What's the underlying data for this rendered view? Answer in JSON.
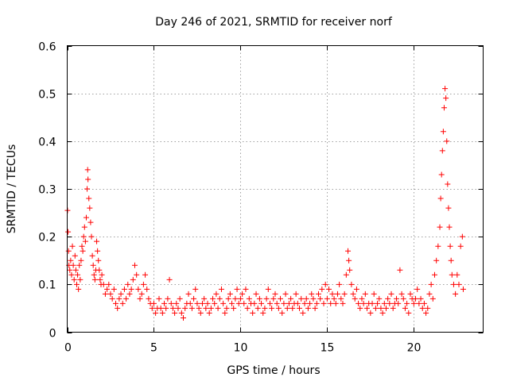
{
  "chart_data": {
    "type": "scatter",
    "title": "Day 246 of 2021, SRMTID for receiver norf",
    "xlabel": "GPS time / hours",
    "ylabel": "SRMTID / TECUs",
    "xlim": [
      0,
      24
    ],
    "ylim": [
      0,
      0.6
    ],
    "xticks": [
      0,
      5,
      10,
      15,
      20
    ],
    "xtick_labels": [
      "0",
      "5",
      "10",
      "15",
      "20"
    ],
    "yticks": [
      0,
      0.1,
      0.2,
      0.3,
      0.4,
      0.5,
      0.6
    ],
    "ytick_labels": [
      "0",
      "0.1",
      "0.2",
      "0.3",
      "0.4",
      "0.5",
      "0.6"
    ],
    "grid": true,
    "marker": "plus",
    "color": "#ff0000",
    "series": [
      {
        "name": "norf",
        "points": [
          [
            0.02,
            0.255
          ],
          [
            0.05,
            0.21
          ],
          [
            0.08,
            0.17
          ],
          [
            0.1,
            0.14
          ],
          [
            0.15,
            0.13
          ],
          [
            0.2,
            0.15
          ],
          [
            0.25,
            0.12
          ],
          [
            0.3,
            0.18
          ],
          [
            0.35,
            0.14
          ],
          [
            0.4,
            0.11
          ],
          [
            0.45,
            0.16
          ],
          [
            0.5,
            0.13
          ],
          [
            0.55,
            0.1
          ],
          [
            0.6,
            0.12
          ],
          [
            0.65,
            0.09
          ],
          [
            0.7,
            0.14
          ],
          [
            0.75,
            0.11
          ],
          [
            0.8,
            0.15
          ],
          [
            0.85,
            0.18
          ],
          [
            0.9,
            0.17
          ],
          [
            0.95,
            0.2
          ],
          [
            1.0,
            0.22
          ],
          [
            1.05,
            0.19
          ],
          [
            1.1,
            0.24
          ],
          [
            1.15,
            0.3
          ],
          [
            1.18,
            0.34
          ],
          [
            1.2,
            0.32
          ],
          [
            1.25,
            0.28
          ],
          [
            1.3,
            0.26
          ],
          [
            1.35,
            0.23
          ],
          [
            1.4,
            0.2
          ],
          [
            1.45,
            0.16
          ],
          [
            1.5,
            0.14
          ],
          [
            1.55,
            0.12
          ],
          [
            1.6,
            0.11
          ],
          [
            1.65,
            0.13
          ],
          [
            1.7,
            0.19
          ],
          [
            1.75,
            0.17
          ],
          [
            1.8,
            0.15
          ],
          [
            1.85,
            0.13
          ],
          [
            1.9,
            0.11
          ],
          [
            1.95,
            0.1
          ],
          [
            2.0,
            0.12
          ],
          [
            2.1,
            0.1
          ],
          [
            2.2,
            0.08
          ],
          [
            2.3,
            0.09
          ],
          [
            2.4,
            0.1
          ],
          [
            2.5,
            0.08
          ],
          [
            2.6,
            0.07
          ],
          [
            2.7,
            0.09
          ],
          [
            2.8,
            0.06
          ],
          [
            2.9,
            0.05
          ],
          [
            3.0,
            0.07
          ],
          [
            3.1,
            0.08
          ],
          [
            3.2,
            0.06
          ],
          [
            3.3,
            0.09
          ],
          [
            3.4,
            0.07
          ],
          [
            3.5,
            0.1
          ],
          [
            3.6,
            0.08
          ],
          [
            3.7,
            0.09
          ],
          [
            3.8,
            0.11
          ],
          [
            3.9,
            0.14
          ],
          [
            4.0,
            0.12
          ],
          [
            4.1,
            0.09
          ],
          [
            4.2,
            0.07
          ],
          [
            4.3,
            0.08
          ],
          [
            4.4,
            0.1
          ],
          [
            4.5,
            0.12
          ],
          [
            4.6,
            0.09
          ],
          [
            4.7,
            0.07
          ],
          [
            4.8,
            0.06
          ],
          [
            4.9,
            0.05
          ],
          [
            5.0,
            0.06
          ],
          [
            5.1,
            0.04
          ],
          [
            5.2,
            0.05
          ],
          [
            5.3,
            0.07
          ],
          [
            5.4,
            0.05
          ],
          [
            5.5,
            0.04
          ],
          [
            5.6,
            0.06
          ],
          [
            5.7,
            0.05
          ],
          [
            5.8,
            0.07
          ],
          [
            5.9,
            0.11
          ],
          [
            6.0,
            0.06
          ],
          [
            6.1,
            0.05
          ],
          [
            6.2,
            0.04
          ],
          [
            6.3,
            0.06
          ],
          [
            6.4,
            0.05
          ],
          [
            6.5,
            0.07
          ],
          [
            6.6,
            0.04
          ],
          [
            6.7,
            0.03
          ],
          [
            6.8,
            0.05
          ],
          [
            6.9,
            0.06
          ],
          [
            7.0,
            0.08
          ],
          [
            7.1,
            0.06
          ],
          [
            7.2,
            0.05
          ],
          [
            7.3,
            0.07
          ],
          [
            7.4,
            0.09
          ],
          [
            7.5,
            0.06
          ],
          [
            7.6,
            0.05
          ],
          [
            7.7,
            0.04
          ],
          [
            7.8,
            0.06
          ],
          [
            7.9,
            0.07
          ],
          [
            8.0,
            0.05
          ],
          [
            8.1,
            0.06
          ],
          [
            8.2,
            0.04
          ],
          [
            8.3,
            0.05
          ],
          [
            8.4,
            0.07
          ],
          [
            8.5,
            0.06
          ],
          [
            8.6,
            0.08
          ],
          [
            8.7,
            0.05
          ],
          [
            8.8,
            0.07
          ],
          [
            8.9,
            0.09
          ],
          [
            9.0,
            0.06
          ],
          [
            9.1,
            0.04
          ],
          [
            9.2,
            0.05
          ],
          [
            9.3,
            0.07
          ],
          [
            9.4,
            0.08
          ],
          [
            9.5,
            0.06
          ],
          [
            9.6,
            0.05
          ],
          [
            9.7,
            0.07
          ],
          [
            9.8,
            0.09
          ],
          [
            9.9,
            0.06
          ],
          [
            10.0,
            0.07
          ],
          [
            10.1,
            0.08
          ],
          [
            10.2,
            0.06
          ],
          [
            10.3,
            0.09
          ],
          [
            10.4,
            0.05
          ],
          [
            10.5,
            0.07
          ],
          [
            10.6,
            0.06
          ],
          [
            10.7,
            0.04
          ],
          [
            10.8,
            0.06
          ],
          [
            10.9,
            0.08
          ],
          [
            11.0,
            0.05
          ],
          [
            11.1,
            0.07
          ],
          [
            11.2,
            0.06
          ],
          [
            11.3,
            0.04
          ],
          [
            11.4,
            0.05
          ],
          [
            11.5,
            0.07
          ],
          [
            11.6,
            0.09
          ],
          [
            11.7,
            0.06
          ],
          [
            11.8,
            0.05
          ],
          [
            11.9,
            0.07
          ],
          [
            12.0,
            0.08
          ],
          [
            12.1,
            0.06
          ],
          [
            12.2,
            0.05
          ],
          [
            12.3,
            0.07
          ],
          [
            12.4,
            0.04
          ],
          [
            12.5,
            0.06
          ],
          [
            12.6,
            0.08
          ],
          [
            12.7,
            0.05
          ],
          [
            12.8,
            0.06
          ],
          [
            12.9,
            0.07
          ],
          [
            13.0,
            0.05
          ],
          [
            13.1,
            0.06
          ],
          [
            13.2,
            0.08
          ],
          [
            13.3,
            0.06
          ],
          [
            13.4,
            0.05
          ],
          [
            13.5,
            0.07
          ],
          [
            13.6,
            0.04
          ],
          [
            13.7,
            0.06
          ],
          [
            13.8,
            0.07
          ],
          [
            13.9,
            0.05
          ],
          [
            14.0,
            0.06
          ],
          [
            14.1,
            0.08
          ],
          [
            14.2,
            0.07
          ],
          [
            14.3,
            0.05
          ],
          [
            14.4,
            0.06
          ],
          [
            14.5,
            0.08
          ],
          [
            14.6,
            0.07
          ],
          [
            14.7,
            0.09
          ],
          [
            14.8,
            0.06
          ],
          [
            14.9,
            0.1
          ],
          [
            15.0,
            0.07
          ],
          [
            15.1,
            0.09
          ],
          [
            15.2,
            0.06
          ],
          [
            15.3,
            0.08
          ],
          [
            15.4,
            0.07
          ],
          [
            15.5,
            0.06
          ],
          [
            15.6,
            0.08
          ],
          [
            15.7,
            0.1
          ],
          [
            15.8,
            0.07
          ],
          [
            15.9,
            0.06
          ],
          [
            16.0,
            0.08
          ],
          [
            16.1,
            0.12
          ],
          [
            16.2,
            0.17
          ],
          [
            16.25,
            0.15
          ],
          [
            16.3,
            0.13
          ],
          [
            16.4,
            0.1
          ],
          [
            16.5,
            0.08
          ],
          [
            16.6,
            0.07
          ],
          [
            16.7,
            0.09
          ],
          [
            16.8,
            0.06
          ],
          [
            16.9,
            0.05
          ],
          [
            17.0,
            0.07
          ],
          [
            17.1,
            0.06
          ],
          [
            17.2,
            0.08
          ],
          [
            17.3,
            0.05
          ],
          [
            17.4,
            0.06
          ],
          [
            17.5,
            0.04
          ],
          [
            17.6,
            0.06
          ],
          [
            17.7,
            0.08
          ],
          [
            17.8,
            0.05
          ],
          [
            17.9,
            0.06
          ],
          [
            18.0,
            0.07
          ],
          [
            18.1,
            0.05
          ],
          [
            18.2,
            0.04
          ],
          [
            18.3,
            0.06
          ],
          [
            18.4,
            0.05
          ],
          [
            18.5,
            0.07
          ],
          [
            18.6,
            0.06
          ],
          [
            18.7,
            0.08
          ],
          [
            18.8,
            0.05
          ],
          [
            18.9,
            0.06
          ],
          [
            19.0,
            0.07
          ],
          [
            19.1,
            0.06
          ],
          [
            19.2,
            0.13
          ],
          [
            19.3,
            0.08
          ],
          [
            19.4,
            0.07
          ],
          [
            19.5,
            0.05
          ],
          [
            19.6,
            0.06
          ],
          [
            19.7,
            0.04
          ],
          [
            19.8,
            0.08
          ],
          [
            19.9,
            0.07
          ],
          [
            20.0,
            0.06
          ],
          [
            20.1,
            0.07
          ],
          [
            20.2,
            0.09
          ],
          [
            20.3,
            0.06
          ],
          [
            20.4,
            0.07
          ],
          [
            20.5,
            0.05
          ],
          [
            20.6,
            0.06
          ],
          [
            20.7,
            0.04
          ],
          [
            20.8,
            0.05
          ],
          [
            20.9,
            0.08
          ],
          [
            21.0,
            0.1
          ],
          [
            21.1,
            0.07
          ],
          [
            21.2,
            0.12
          ],
          [
            21.3,
            0.15
          ],
          [
            21.4,
            0.18
          ],
          [
            21.5,
            0.22
          ],
          [
            21.55,
            0.28
          ],
          [
            21.6,
            0.33
          ],
          [
            21.65,
            0.38
          ],
          [
            21.7,
            0.42
          ],
          [
            21.75,
            0.47
          ],
          [
            21.8,
            0.51
          ],
          [
            21.85,
            0.49
          ],
          [
            21.9,
            0.4
          ],
          [
            21.95,
            0.31
          ],
          [
            22.0,
            0.26
          ],
          [
            22.05,
            0.22
          ],
          [
            22.1,
            0.18
          ],
          [
            22.15,
            0.15
          ],
          [
            22.2,
            0.12
          ],
          [
            22.3,
            0.1
          ],
          [
            22.4,
            0.08
          ],
          [
            22.5,
            0.12
          ],
          [
            22.6,
            0.1
          ],
          [
            22.7,
            0.18
          ],
          [
            22.8,
            0.2
          ],
          [
            22.85,
            0.09
          ]
        ]
      }
    ]
  }
}
